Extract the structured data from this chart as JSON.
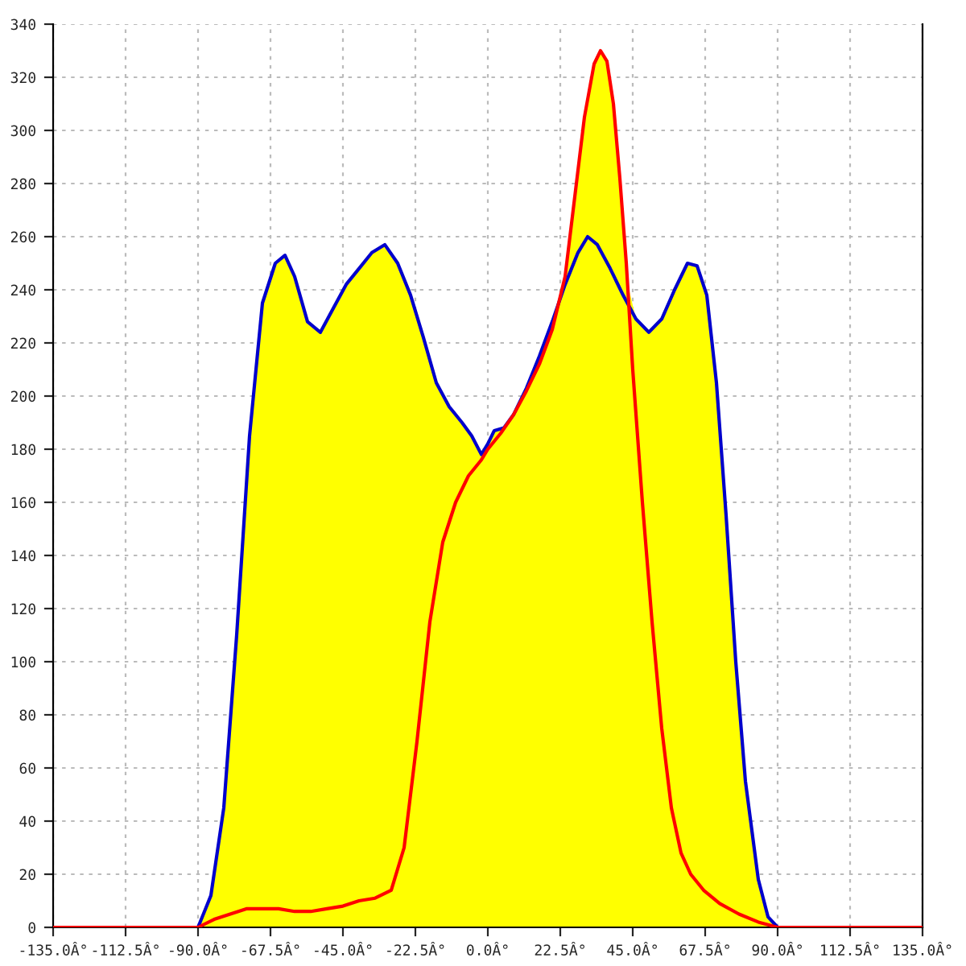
{
  "chart_data": {
    "type": "line",
    "series": [
      {
        "type": "area",
        "color": "#ffff00",
        "x": [
          -90,
          -86,
          -82,
          -78,
          -74,
          -70,
          -66,
          -63,
          -60,
          -56,
          -52,
          -48,
          -44,
          -40,
          -36,
          -32,
          -28,
          -24,
          -20,
          -16,
          -12,
          -8,
          -5,
          -2,
          0,
          2,
          5,
          8,
          12,
          16,
          20,
          23,
          24,
          27,
          30,
          33,
          35,
          37,
          39,
          41,
          43,
          43.5,
          46,
          50,
          54,
          58,
          62,
          65,
          68,
          71,
          74,
          77,
          80,
          84,
          87,
          90
        ],
        "values": [
          0,
          12,
          45,
          110,
          185,
          235,
          250,
          253,
          245,
          228,
          224,
          233,
          242,
          248,
          254,
          257,
          250,
          238,
          222,
          205,
          196,
          190,
          185,
          178,
          182,
          187,
          188,
          193,
          203,
          215,
          228,
          240,
          245,
          275,
          305,
          325,
          330,
          326,
          310,
          282,
          250,
          242,
          229,
          224,
          229,
          240,
          250,
          249,
          238,
          205,
          155,
          100,
          55,
          18,
          4,
          0
        ]
      },
      {
        "color": "#0000cc",
        "x": [
          -90,
          -86,
          -82,
          -78,
          -74,
          -70,
          -66,
          -63,
          -60,
          -56,
          -52,
          -48,
          -44,
          -40,
          -36,
          -32,
          -28,
          -24,
          -20,
          -16,
          -12,
          -8,
          -5,
          -2,
          0,
          2,
          5,
          8,
          12,
          16,
          20,
          24,
          28,
          31,
          34,
          38,
          42,
          46,
          50,
          54,
          58,
          62,
          65,
          68,
          71,
          74,
          77,
          80,
          84,
          87,
          90
        ],
        "values": [
          0,
          12,
          45,
          110,
          185,
          235,
          250,
          253,
          245,
          228,
          224,
          233,
          242,
          248,
          254,
          257,
          250,
          238,
          222,
          205,
          196,
          190,
          185,
          178,
          182,
          187,
          188,
          193,
          203,
          215,
          228,
          242,
          254,
          260,
          257,
          248,
          238,
          229,
          224,
          229,
          240,
          250,
          249,
          238,
          205,
          155,
          100,
          55,
          18,
          4,
          0
        ]
      },
      {
        "color": "#ff0000",
        "x": [
          -135,
          -90,
          -85,
          -80,
          -75,
          -70,
          -65,
          -60,
          -55,
          -50,
          -45,
          -40,
          -35,
          -30,
          -26,
          -22,
          -18,
          -14,
          -10,
          -6,
          -2,
          0,
          4,
          8,
          12,
          16,
          20,
          24,
          27,
          30,
          33,
          35,
          37,
          39,
          41,
          43,
          45,
          48,
          51,
          54,
          57,
          60,
          63,
          67,
          72,
          78,
          84,
          90,
          135
        ],
        "values": [
          0,
          0,
          3,
          5,
          7,
          7,
          7,
          6,
          6,
          7,
          8,
          10,
          11,
          14,
          30,
          70,
          115,
          145,
          160,
          170,
          176,
          180,
          186,
          193,
          202,
          212,
          225,
          245,
          275,
          305,
          325,
          330,
          326,
          310,
          282,
          250,
          210,
          160,
          115,
          75,
          45,
          28,
          20,
          14,
          9,
          5,
          2,
          0,
          0
        ]
      }
    ],
    "xlim": [
      -135,
      135
    ],
    "xticks": [
      {
        "value": -135,
        "label": "-135.0Â°"
      },
      {
        "value": -112.5,
        "label": "-112.5Â°"
      },
      {
        "value": -90,
        "label": "-90.0Â°"
      },
      {
        "value": -67.5,
        "label": "-67.5Â°"
      },
      {
        "value": -45,
        "label": "-45.0Â°"
      },
      {
        "value": -22.5,
        "label": "-22.5Â°"
      },
      {
        "value": 0,
        "label": "0.0Â°"
      },
      {
        "value": 22.5,
        "label": "22.5Â°"
      },
      {
        "value": 45,
        "label": "45.0Â°"
      },
      {
        "value": 67.5,
        "label": "67.5Â°"
      },
      {
        "value": 90,
        "label": "90.0Â°"
      },
      {
        "value": 112.5,
        "label": "112.5Â°"
      },
      {
        "value": 135,
        "label": "135.0Â°"
      }
    ],
    "ylim": [
      0,
      340
    ],
    "yticks": [
      0,
      20,
      40,
      60,
      80,
      100,
      120,
      140,
      160,
      180,
      200,
      220,
      240,
      260,
      280,
      300,
      320,
      340
    ],
    "grid": true
  }
}
